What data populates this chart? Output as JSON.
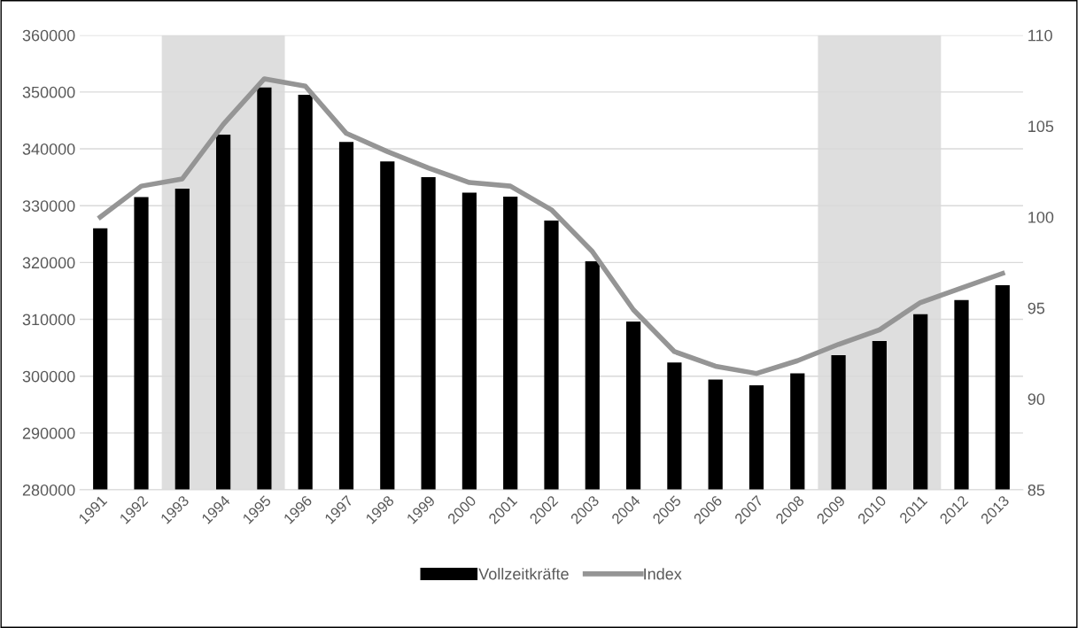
{
  "chart_data": {
    "type": "bar",
    "categories": [
      "1991",
      "1992",
      "1993",
      "1994",
      "1995",
      "1996",
      "1997",
      "1998",
      "1999",
      "2000",
      "2001",
      "2002",
      "2003",
      "2004",
      "2005",
      "2006",
      "2007",
      "2008",
      "2009",
      "2010",
      "2011",
      "2012",
      "2013"
    ],
    "series": [
      {
        "name": "Vollzeitkräfte",
        "color": "#000000",
        "values": [
          326000,
          331500,
          333000,
          342500,
          350800,
          349500,
          341200,
          337800,
          335000,
          332300,
          331600,
          327400,
          320200,
          309600,
          302400,
          299400,
          298400,
          300500,
          303700,
          306200,
          310900,
          313400,
          316000
        ]
      },
      {
        "name": "Index",
        "type": "line",
        "axis": "y2",
        "color": "#959595",
        "values": [
          100.0,
          101.7,
          102.1,
          105.1,
          107.6,
          107.2,
          104.6,
          103.6,
          102.7,
          101.9,
          101.7,
          100.4,
          98.1,
          94.9,
          92.6,
          91.8,
          91.4,
          92.1,
          93.0,
          93.8,
          95.3,
          96.1,
          96.9
        ]
      }
    ],
    "ylim": [
      280000,
      360000
    ],
    "yticks": [
      280000,
      290000,
      300000,
      310000,
      320000,
      330000,
      340000,
      350000,
      360000
    ],
    "y2lim": [
      85,
      110
    ],
    "y2ticks": [
      85,
      90,
      95,
      100,
      105,
      110
    ],
    "bands": [
      {
        "axis": "x",
        "from": "1993",
        "to": "1995",
        "color": "#dedede"
      },
      {
        "axis": "x",
        "from": "2009",
        "to": "2011",
        "color": "#dedede"
      }
    ],
    "grid": "y",
    "legend": "bottom",
    "line_style": "solid",
    "marker": "none"
  }
}
